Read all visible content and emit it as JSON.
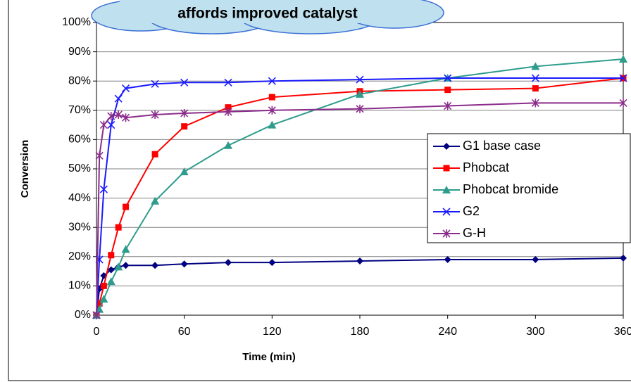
{
  "chart_data": {
    "type": "line",
    "title": "affords improved catalyst",
    "x_label": "Time (min)",
    "y_label": "Conversion",
    "x": [
      0,
      2,
      5,
      10,
      15,
      20,
      40,
      60,
      90,
      120,
      180,
      240,
      300,
      360
    ],
    "xlim": [
      0,
      360
    ],
    "xticks": [
      0,
      60,
      120,
      180,
      240,
      300,
      360
    ],
    "ylim": [
      0,
      100
    ],
    "yticks": [
      {
        "value": 0,
        "label": "0%"
      },
      {
        "value": 10,
        "label": "10%"
      },
      {
        "value": 20,
        "label": "20%"
      },
      {
        "value": 30,
        "label": "30%"
      },
      {
        "value": 40,
        "label": "40%"
      },
      {
        "value": 50,
        "label": "50%"
      },
      {
        "value": 60,
        "label": "60%"
      },
      {
        "value": 70,
        "label": "70%"
      },
      {
        "value": 80,
        "label": "80%"
      },
      {
        "value": 90,
        "label": "90%"
      },
      {
        "value": 100,
        "label": "100%"
      }
    ],
    "grid": true,
    "legend": "right",
    "series": [
      {
        "name": "G1 base case",
        "color": "#000080",
        "marker": "diamond",
        "values": [
          0,
          9,
          13.5,
          15.5,
          16.5,
          17,
          17,
          17.5,
          18,
          18,
          18.5,
          19,
          19,
          19.5
        ]
      },
      {
        "name": "Phobcat",
        "color": "#ff0000",
        "marker": "square",
        "values": [
          0,
          4,
          10,
          20.5,
          30,
          37,
          55,
          64.5,
          71,
          74.5,
          76.5,
          77,
          77.5,
          81
        ]
      },
      {
        "name": "Phobcat bromide",
        "color": "#2e9c8c",
        "marker": "triangle",
        "values": [
          0,
          2,
          5.5,
          11.5,
          16.5,
          22.5,
          39,
          49,
          58,
          65,
          75.5,
          81,
          85,
          87.5
        ]
      },
      {
        "name": "G2",
        "color": "#1a1aff",
        "marker": "x",
        "values": [
          0,
          19,
          43,
          65,
          74,
          77.5,
          79,
          79.5,
          79.5,
          80,
          80.5,
          81,
          81,
          81
        ]
      },
      {
        "name": "G-H",
        "color": "#8b2c8b",
        "marker": "star",
        "values": [
          0,
          54.5,
          65,
          68,
          68.5,
          67.5,
          68.5,
          69,
          69.5,
          70,
          70.5,
          71.5,
          72.5,
          72.5
        ]
      }
    ]
  }
}
